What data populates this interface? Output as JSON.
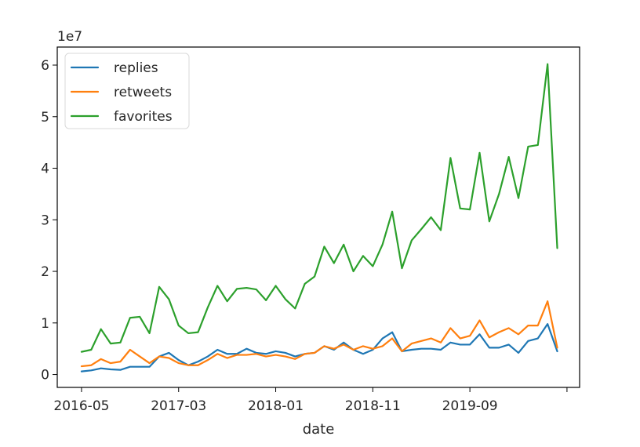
{
  "chart_data": {
    "type": "line",
    "xlabel": "date",
    "ylabel": "",
    "y_offset_text": "1e7",
    "x_ticks": [
      "2016-05",
      "2017-03",
      "2018-01",
      "2018-11",
      "2019-09",
      ""
    ],
    "x_tick_values": [
      0,
      10,
      20,
      30,
      40,
      50
    ],
    "y_ticks": [
      "0",
      "1",
      "2",
      "3",
      "4",
      "5",
      "6"
    ],
    "y_tick_values": [
      0,
      1,
      2,
      3,
      4,
      5,
      6
    ],
    "xlim": [
      -2.5,
      51.3
    ],
    "ylim": [
      -0.25,
      6.35
    ],
    "legend_position": "upper-left",
    "grid": false,
    "series": [
      {
        "name": "replies",
        "color": "#1f77b4",
        "x": [
          0,
          1,
          2,
          3,
          4,
          5,
          6,
          7,
          8,
          9,
          10,
          11,
          12,
          13,
          14,
          15,
          16,
          17,
          18,
          19,
          20,
          21,
          22,
          23,
          24,
          25,
          26,
          27,
          28,
          29,
          30,
          31,
          32,
          33,
          34,
          35,
          36,
          37,
          38,
          39,
          40,
          41,
          42,
          43,
          44,
          45,
          46,
          47,
          48,
          49
        ],
        "values": [
          0.06,
          0.08,
          0.12,
          0.1,
          0.09,
          0.15,
          0.15,
          0.15,
          0.35,
          0.42,
          0.28,
          0.18,
          0.25,
          0.35,
          0.48,
          0.4,
          0.4,
          0.5,
          0.42,
          0.4,
          0.45,
          0.42,
          0.35,
          0.4,
          0.42,
          0.55,
          0.48,
          0.62,
          0.48,
          0.4,
          0.48,
          0.7,
          0.82,
          0.45,
          0.48,
          0.5,
          0.5,
          0.48,
          0.62,
          0.58,
          0.58,
          0.78,
          0.52,
          0.52,
          0.58,
          0.42,
          0.65,
          0.7,
          0.98,
          0.45
        ]
      },
      {
        "name": "retweets",
        "color": "#ff7f0e",
        "x": [
          0,
          1,
          2,
          3,
          4,
          5,
          6,
          7,
          8,
          9,
          10,
          11,
          12,
          13,
          14,
          15,
          16,
          17,
          18,
          19,
          20,
          21,
          22,
          23,
          24,
          25,
          26,
          27,
          28,
          29,
          30,
          31,
          32,
          33,
          34,
          35,
          36,
          37,
          38,
          39,
          40,
          41,
          42,
          43,
          44,
          45,
          46,
          47,
          48,
          49
        ],
        "values": [
          0.16,
          0.18,
          0.3,
          0.22,
          0.25,
          0.48,
          0.35,
          0.22,
          0.35,
          0.32,
          0.22,
          0.18,
          0.18,
          0.28,
          0.4,
          0.32,
          0.38,
          0.38,
          0.4,
          0.35,
          0.38,
          0.35,
          0.3,
          0.4,
          0.42,
          0.55,
          0.5,
          0.58,
          0.48,
          0.55,
          0.5,
          0.55,
          0.7,
          0.45,
          0.6,
          0.65,
          0.7,
          0.62,
          0.9,
          0.7,
          0.75,
          1.05,
          0.72,
          0.82,
          0.9,
          0.78,
          0.95,
          0.95,
          1.42,
          0.52
        ]
      },
      {
        "name": "favorites",
        "color": "#2ca02c",
        "x": [
          0,
          1,
          2,
          3,
          4,
          5,
          6,
          7,
          8,
          9,
          10,
          11,
          12,
          13,
          14,
          15,
          16,
          17,
          18,
          19,
          20,
          21,
          22,
          23,
          24,
          25,
          26,
          27,
          28,
          29,
          30,
          31,
          32,
          33,
          34,
          35,
          36,
          37,
          38,
          39,
          40,
          41,
          42,
          43,
          44,
          45,
          46,
          47,
          48,
          49
        ],
        "values": [
          0.44,
          0.48,
          0.88,
          0.6,
          0.62,
          1.1,
          1.12,
          0.8,
          1.7,
          1.46,
          0.95,
          0.8,
          0.82,
          1.3,
          1.72,
          1.42,
          1.66,
          1.68,
          1.65,
          1.44,
          1.72,
          1.46,
          1.28,
          1.76,
          1.9,
          2.48,
          2.16,
          2.52,
          2.0,
          2.3,
          2.1,
          2.52,
          3.16,
          2.06,
          2.6,
          2.82,
          3.05,
          2.8,
          4.2,
          3.22,
          3.2,
          4.3,
          2.97,
          3.5,
          4.22,
          3.42,
          4.42,
          4.45,
          6.02,
          2.45
        ]
      }
    ]
  }
}
